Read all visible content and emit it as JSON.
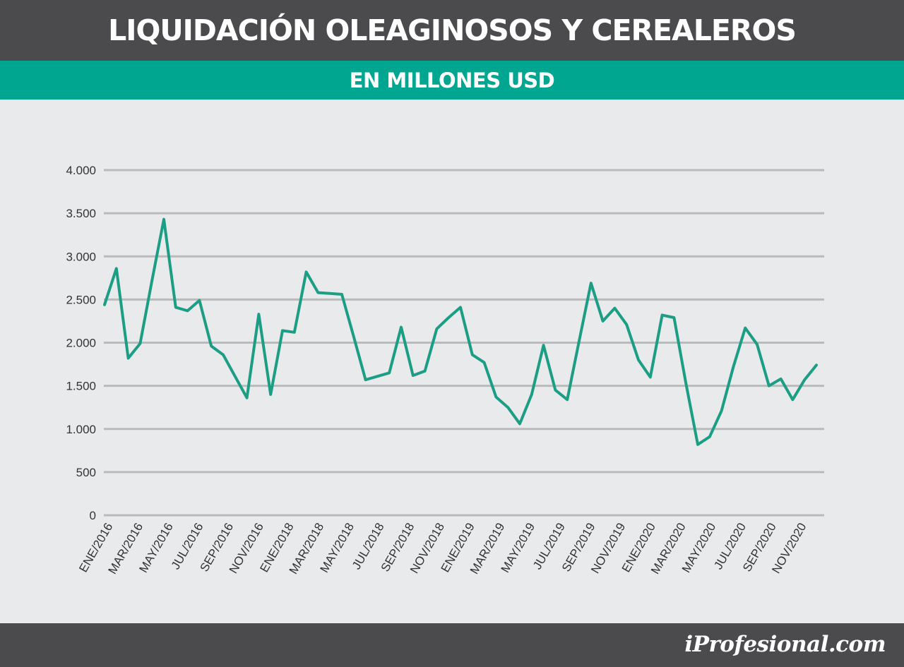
{
  "title": "LIQUIDACIÓN OLEAGINOSOS Y CEREALEROS",
  "subtitle": "EN MILLONES USD",
  "brand": "iProfesional.com",
  "colors": {
    "header_bg": "#4b4b4d",
    "subheader_bg": "#00a690",
    "line": "#1b9e84",
    "grid": "#b9babb",
    "background": "#e9eaeb"
  },
  "chart_data": {
    "type": "line",
    "title": "LIQUIDACIÓN OLEAGINOSOS Y CEREALEROS",
    "subtitle": "EN MILLONES USD",
    "xlabel": "",
    "ylabel": "",
    "ylim": [
      0,
      4000
    ],
    "yticks": [
      0,
      500,
      1000,
      1500,
      2000,
      2500,
      3000,
      3500,
      4000
    ],
    "ytick_labels": [
      "0",
      "500",
      "1.000",
      "1.500",
      "2.000",
      "2.500",
      "3.000",
      "3.500",
      "4.000"
    ],
    "xtick_labels": [
      "ENE/2016",
      "MAR/2016",
      "MAY/2016",
      "JUL/2016",
      "SEP/2016",
      "NOV/2016",
      "ENE/2018",
      "MAR/2018",
      "MAY/2018",
      "JUL/2018",
      "SEP/2018",
      "NOV/2018",
      "ENE/2019",
      "MAR/2019",
      "MAY/2019",
      "JUL/2019",
      "SEP/2019",
      "NOV/2019",
      "ENE/2020",
      "MAR/2020",
      "MAY/2020",
      "JUL/2020",
      "SEP/2020",
      "NOV/2020"
    ],
    "grid": true,
    "legend": "none",
    "series": [
      {
        "values": [
          2440,
          2860,
          1820,
          1990,
          2720,
          3430,
          2410,
          2370,
          2490,
          1960,
          1860,
          1610,
          1360,
          2330,
          1400,
          2140,
          2120,
          2820,
          2580,
          2570,
          2560,
          2070,
          1570,
          1610,
          1650,
          2180,
          1620,
          1670,
          2160,
          2290,
          2410,
          1860,
          1770,
          1370,
          1250,
          1060,
          1400,
          1970,
          1450,
          1340,
          2020,
          2690,
          2250,
          2400,
          2210,
          1800,
          1600,
          2320,
          2290,
          1530,
          820,
          910,
          1210,
          1720,
          2170,
          1980,
          1500,
          1580,
          1340,
          1570,
          1740
        ]
      }
    ]
  }
}
